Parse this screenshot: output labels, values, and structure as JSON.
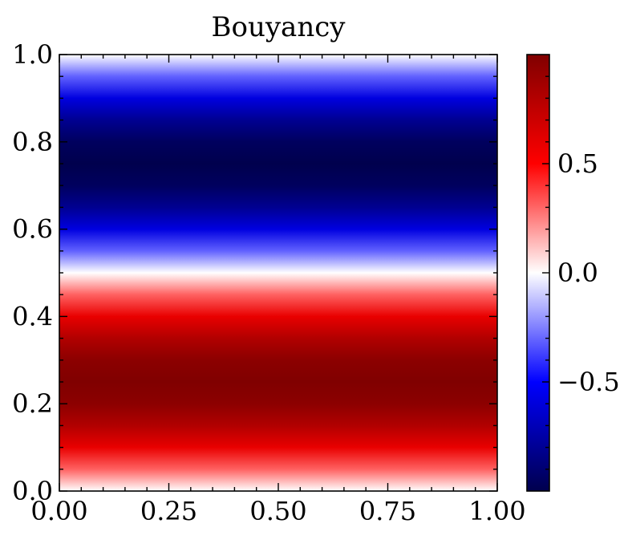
{
  "chart_data": {
    "type": "heatmap",
    "title": "Bouyancy",
    "xlabel": "",
    "ylabel": "",
    "xlim": [
      0.0,
      1.0
    ],
    "ylim": [
      0.0,
      1.0
    ],
    "grid": false,
    "x_ticks": [
      {
        "value": 0.0,
        "label": "0.00"
      },
      {
        "value": 0.25,
        "label": "0.25"
      },
      {
        "value": 0.5,
        "label": "0.50"
      },
      {
        "value": 0.75,
        "label": "0.75"
      },
      {
        "value": 1.0,
        "label": "1.00"
      }
    ],
    "y_ticks": [
      {
        "value": 0.0,
        "label": "0.0"
      },
      {
        "value": 0.2,
        "label": "0.2"
      },
      {
        "value": 0.4,
        "label": "0.4"
      },
      {
        "value": 0.6,
        "label": "0.6"
      },
      {
        "value": 0.8,
        "label": "0.8"
      },
      {
        "value": 1.0,
        "label": "1.0"
      }
    ],
    "field": {
      "function": "sin(2*pi*y)",
      "varies_along": "y",
      "y_samples": [
        0.0,
        0.05,
        0.1,
        0.15,
        0.2,
        0.25,
        0.3,
        0.35,
        0.4,
        0.45,
        0.5,
        0.55,
        0.6,
        0.65,
        0.7,
        0.75,
        0.8,
        0.85,
        0.9,
        0.95,
        1.0
      ],
      "values": [
        0.0,
        0.309,
        0.588,
        0.809,
        0.951,
        1.0,
        0.951,
        0.809,
        0.588,
        0.309,
        0.0,
        -0.309,
        -0.588,
        -0.809,
        -0.951,
        -1.0,
        -0.951,
        -0.809,
        -0.588,
        -0.309,
        0.0
      ]
    },
    "colorbar": {
      "colormap": "seismic",
      "vmin": -1.0,
      "vmax": 1.0,
      "ticks": [
        {
          "value": -0.5,
          "label": "−0.5"
        },
        {
          "value": 0.0,
          "label": "0.0"
        },
        {
          "value": 0.5,
          "label": "0.5"
        }
      ],
      "colors": {
        "low": "#00004d",
        "mid_low": "#0000ff",
        "center": "#ffffff",
        "mid_high": "#ff0000",
        "high": "#800000"
      }
    }
  }
}
